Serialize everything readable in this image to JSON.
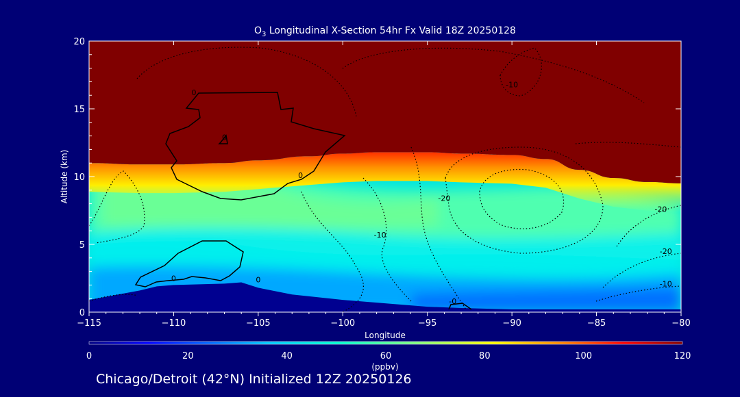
{
  "chart_data": {
    "type": "heatmap",
    "title": "O",
    "title_subscript": "3",
    "title_rest": " Longitudinal X-Section 54hr  Fx Valid 18Z 20250128",
    "xlabel": "Longitude",
    "ylabel": "Altitude (km)",
    "xlim": [
      -115,
      -80
    ],
    "ylim": [
      0,
      20
    ],
    "x_ticks": [
      -115,
      -110,
      -105,
      -100,
      -95,
      -90,
      -85,
      -80
    ],
    "x_tick_labels": [
      "−115",
      "−110",
      "−105",
      "−100",
      "−95",
      "−90",
      "−85",
      "−80"
    ],
    "y_ticks": [
      0,
      5,
      10,
      15,
      20
    ],
    "y_tick_labels": [
      "0",
      "5",
      "10",
      "15",
      "20"
    ],
    "colorbar": {
      "label": "(ppbv)",
      "range": [
        0,
        120
      ],
      "ticks": [
        0,
        20,
        40,
        60,
        80,
        100,
        120
      ],
      "tick_labels": [
        "0",
        "20",
        "40",
        "60",
        "80",
        "100",
        "120"
      ]
    },
    "tropopause_km": [
      [
        -115,
        11.0
      ],
      [
        -112,
        10.9
      ],
      [
        -110,
        10.9
      ],
      [
        -107,
        11.0
      ],
      [
        -105,
        11.2
      ],
      [
        -102,
        11.5
      ],
      [
        -100,
        11.7
      ],
      [
        -98,
        11.8
      ],
      [
        -95,
        11.8
      ],
      [
        -93,
        11.7
      ],
      [
        -90,
        11.6
      ],
      [
        -88,
        11.3
      ],
      [
        -86,
        10.5
      ],
      [
        -84,
        9.9
      ],
      [
        -82,
        9.6
      ],
      [
        -80,
        9.5
      ]
    ],
    "terrain_km": [
      [
        -115,
        0.9
      ],
      [
        -112,
        1.6
      ],
      [
        -111,
        1.9
      ],
      [
        -110,
        2.0
      ],
      [
        -107,
        2.1
      ],
      [
        -106,
        2.2
      ],
      [
        -105,
        1.8
      ],
      [
        -103,
        1.3
      ],
      [
        -100,
        0.9
      ],
      [
        -97,
        0.6
      ],
      [
        -95,
        0.4
      ],
      [
        -93,
        0.3
      ],
      [
        -90,
        0.2
      ],
      [
        -85,
        0.2
      ],
      [
        -80,
        0.2
      ]
    ],
    "contour_labels": [
      {
        "text": "0",
        "x": -108.8,
        "y": 16.0
      },
      {
        "text": "0",
        "x": -107.0,
        "y": 12.7
      },
      {
        "text": "0",
        "x": -102.5,
        "y": 9.9
      },
      {
        "text": "-10",
        "x": -90.0,
        "y": 16.6
      },
      {
        "text": "-20",
        "x": -94.0,
        "y": 8.2
      },
      {
        "text": "-10",
        "x": -97.8,
        "y": 5.5
      },
      {
        "text": "0",
        "x": -110.0,
        "y": 2.3
      },
      {
        "text": "0",
        "x": -105.0,
        "y": 2.2
      },
      {
        "text": "-0",
        "x": -93.5,
        "y": 0.6
      },
      {
        "text": "-20",
        "x": -81.2,
        "y": 7.4
      },
      {
        "text": "-20",
        "x": -80.9,
        "y": 4.3
      },
      {
        "text": "-10",
        "x": -80.9,
        "y": 1.9
      }
    ],
    "footer": "Chicago/Detroit (42°N) Initialized 12Z 20250126"
  }
}
